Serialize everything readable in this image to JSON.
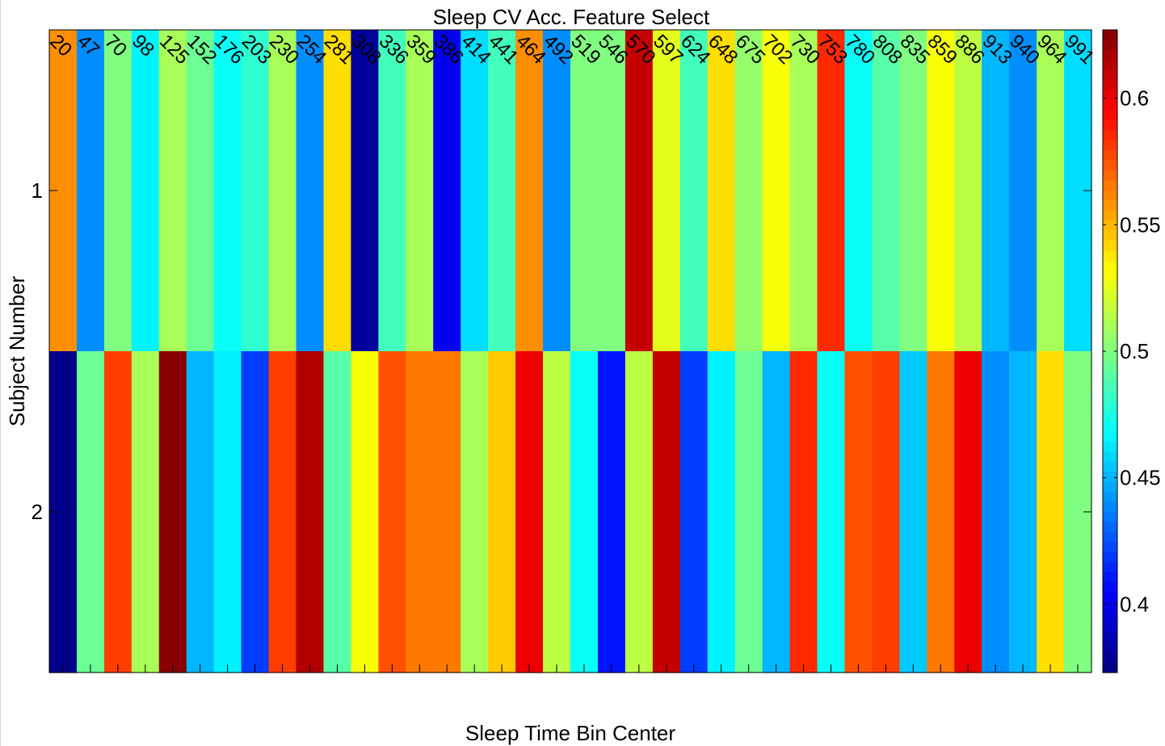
{
  "chart_data": {
    "type": "heatmap",
    "title": "Sleep CV Acc. Feature Select",
    "xlabel": "Sleep Time Bin Center",
    "ylabel": "Subject Number",
    "x_tick_labels": [
      "20",
      "47",
      "70",
      "98",
      "125",
      "152",
      "176",
      "203",
      "230",
      "254",
      "281",
      "308",
      "336",
      "359",
      "386",
      "414",
      "441",
      "464",
      "492",
      "519",
      "546",
      "570",
      "597",
      "624",
      "648",
      "675",
      "702",
      "730",
      "753",
      "780",
      "808",
      "835",
      "859",
      "886",
      "913",
      "940",
      "964",
      "991"
    ],
    "y_tick_labels": [
      "1",
      "2"
    ],
    "colorbar": {
      "colormap": "jet",
      "clim": [
        0.373,
        0.627
      ],
      "ticks": [
        0.4,
        0.45,
        0.5,
        0.55,
        0.6
      ],
      "tick_labels": [
        "0.4",
        "0.45",
        "0.5",
        "0.55",
        "0.6"
      ]
    },
    "rows": [
      {
        "label": "1",
        "values": [
          0.56,
          0.44,
          0.5,
          0.465,
          0.51,
          0.495,
          0.47,
          0.48,
          0.51,
          0.44,
          0.54,
          0.38,
          0.485,
          0.51,
          0.4,
          0.46,
          0.485,
          0.56,
          0.44,
          0.5,
          0.5,
          0.61,
          0.525,
          0.485,
          0.54,
          0.505,
          0.53,
          0.51,
          0.585,
          0.47,
          0.49,
          0.5,
          0.53,
          0.515,
          0.45,
          0.44,
          0.51,
          0.46
        ]
      },
      {
        "label": "2",
        "values": [
          0.375,
          0.495,
          0.58,
          0.51,
          0.625,
          0.45,
          0.465,
          0.42,
          0.58,
          0.615,
          0.49,
          0.53,
          0.575,
          0.565,
          0.565,
          0.51,
          0.545,
          0.6,
          0.515,
          0.47,
          0.41,
          0.515,
          0.61,
          0.42,
          0.465,
          0.495,
          0.45,
          0.585,
          0.47,
          0.575,
          0.58,
          0.455,
          0.565,
          0.6,
          0.44,
          0.45,
          0.54,
          0.5
        ]
      }
    ]
  }
}
